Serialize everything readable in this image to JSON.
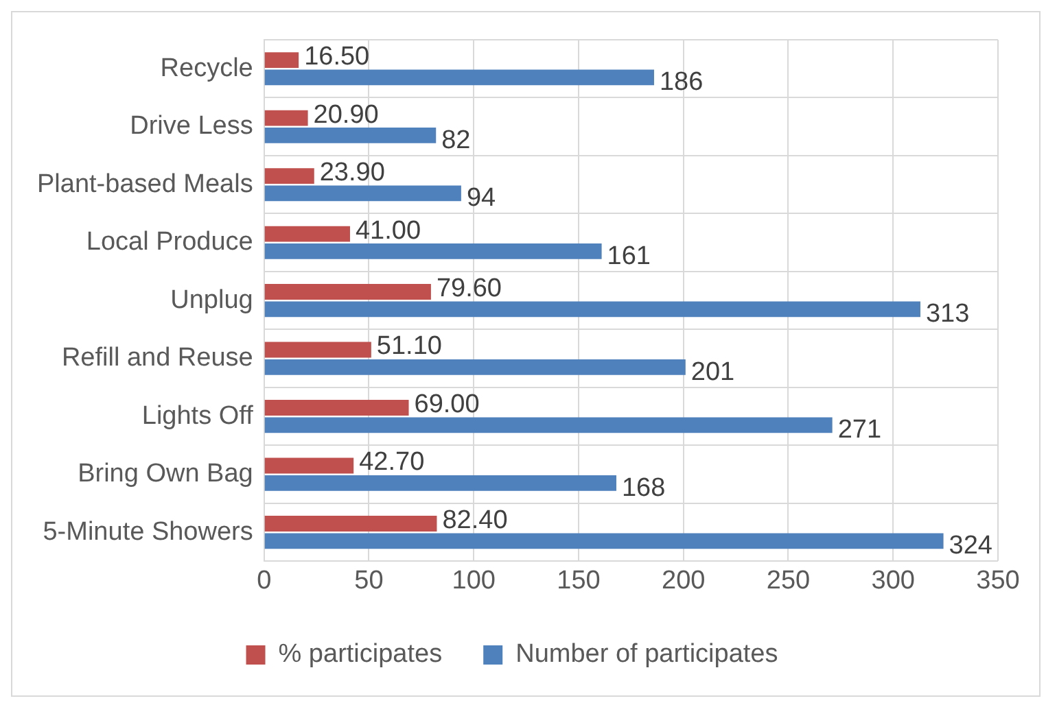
{
  "chart_data": {
    "type": "bar",
    "orientation": "horizontal",
    "categories": [
      "Recycle",
      "Drive Less",
      "Plant-based Meals",
      "Local Produce",
      "Unplug",
      "Refill and Reuse",
      "Lights Off",
      "Bring Own Bag",
      "5-Minute Showers"
    ],
    "series": [
      {
        "name": "% participates",
        "color": "#c0504d",
        "values": [
          16.5,
          20.9,
          23.9,
          41.0,
          79.6,
          51.1,
          69.0,
          42.7,
          82.4
        ],
        "value_labels": [
          "16.50",
          "20.90",
          "23.90",
          "41.00",
          "79.60",
          "51.10",
          "69.00",
          "42.70",
          "82.40"
        ]
      },
      {
        "name": "Number of participates",
        "color": "#4f81bd",
        "values": [
          186,
          82,
          94,
          161,
          313,
          201,
          271,
          168,
          324
        ],
        "value_labels": [
          "186",
          "82",
          "94",
          "161",
          "313",
          "201",
          "271",
          "168",
          "324"
        ]
      }
    ],
    "xlim": [
      0,
      350
    ],
    "xticks": [
      0,
      50,
      100,
      150,
      200,
      250,
      300,
      350
    ],
    "grid": true,
    "legend": "bottom"
  }
}
